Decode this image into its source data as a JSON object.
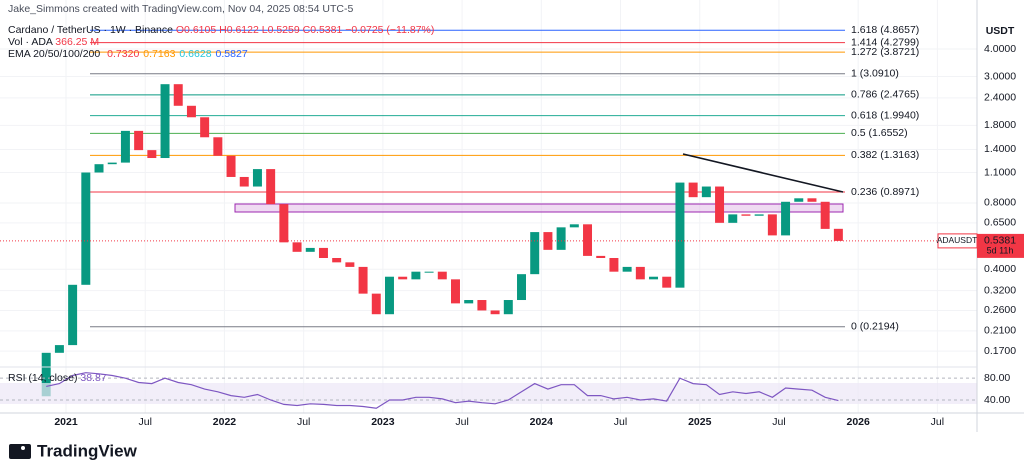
{
  "header": {
    "credit": "Jake_Simmons created with TradingView.com, Nov 04, 2025 08:54 UTC-5",
    "symbol": "Cardano / TetherUS · 1W · Binance",
    "ohlc": [
      "O0.6105",
      "H0.6122",
      "L0.5259",
      "C0.5381",
      "−0.0725 (−11.87%)"
    ],
    "volume_label": "Vol · ADA",
    "volume_value": "366.25 M",
    "ema_label": "EMA 20/50/100/200",
    "ema_values": [
      {
        "text": "0.7320",
        "color": "#f23645"
      },
      {
        "text": "0.7163",
        "color": "#ff9800"
      },
      {
        "text": "0.6628",
        "color": "#26c6da"
      },
      {
        "text": "0.5827",
        "color": "#2962ff"
      }
    ]
  },
  "chart_data": {
    "type": "candlestick",
    "axis_unit": "USDT",
    "log_scale": true,
    "grid": true,
    "up_color": "#089981",
    "down_color": "#f23645",
    "x": [
      "2020-11",
      "2020-12",
      "2021-01",
      "2021-02",
      "2021-03",
      "2021-04",
      "2021-05",
      "2021-06",
      "2021-07",
      "2021-08",
      "2021-09",
      "2021-10",
      "2021-11",
      "2021-12",
      "2022-01",
      "2022-02",
      "2022-03",
      "2022-04",
      "2022-05",
      "2022-06",
      "2022-07",
      "2022-08",
      "2022-09",
      "2022-10",
      "2022-11",
      "2022-12",
      "2023-01",
      "2023-02",
      "2023-03",
      "2023-04",
      "2023-05",
      "2023-06",
      "2023-07",
      "2023-08",
      "2023-09",
      "2023-10",
      "2023-11",
      "2023-12",
      "2024-01",
      "2024-02",
      "2024-03",
      "2024-04",
      "2024-05",
      "2024-06",
      "2024-07",
      "2024-08",
      "2024-09",
      "2024-10",
      "2024-11",
      "2024-12",
      "2025-01",
      "2025-02",
      "2025-03",
      "2025-04",
      "2025-05",
      "2025-06",
      "2025-07",
      "2025-08",
      "2025-09",
      "2025-10",
      "2025-11"
    ],
    "open": [
      0.106,
      0.167,
      0.181,
      0.34,
      1.1,
      1.2,
      1.22,
      1.7,
      1.39,
      1.28,
      2.77,
      2.21,
      1.96,
      1.59,
      1.31,
      1.05,
      0.95,
      1.14,
      0.79,
      0.53,
      0.48,
      0.5,
      0.45,
      0.43,
      0.41,
      0.31,
      0.25,
      0.37,
      0.36,
      0.39,
      0.39,
      0.36,
      0.28,
      0.29,
      0.26,
      0.25,
      0.29,
      0.38,
      0.59,
      0.49,
      0.62,
      0.64,
      0.46,
      0.45,
      0.39,
      0.41,
      0.36,
      0.37,
      0.33,
      0.99,
      0.85,
      0.95,
      0.65,
      0.71,
      0.7,
      0.71,
      0.57,
      0.81,
      0.84,
      0.81,
      0.6105
    ],
    "close": [
      0.167,
      0.181,
      0.34,
      1.1,
      1.2,
      1.22,
      1.7,
      1.39,
      1.28,
      2.77,
      2.21,
      1.96,
      1.59,
      1.31,
      1.05,
      0.95,
      1.14,
      0.79,
      0.53,
      0.48,
      0.5,
      0.45,
      0.43,
      0.41,
      0.31,
      0.25,
      0.37,
      0.36,
      0.39,
      0.39,
      0.36,
      0.28,
      0.29,
      0.26,
      0.25,
      0.29,
      0.38,
      0.59,
      0.49,
      0.62,
      0.64,
      0.46,
      0.45,
      0.39,
      0.41,
      0.36,
      0.37,
      0.33,
      0.99,
      0.85,
      0.95,
      0.65,
      0.71,
      0.7,
      0.71,
      0.57,
      0.81,
      0.84,
      0.81,
      0.61,
      0.5381
    ],
    "xlim": [
      "2020-08",
      "2026-10"
    ],
    "xticks": [
      {
        "value": "2021-01",
        "label": "2021"
      },
      {
        "value": "2021-07",
        "label": "Jul"
      },
      {
        "value": "2022-01",
        "label": "2022"
      },
      {
        "value": "2022-07",
        "label": "Jul"
      },
      {
        "value": "2023-01",
        "label": "2023"
      },
      {
        "value": "2023-07",
        "label": "Jul"
      },
      {
        "value": "2024-01",
        "label": "2024"
      },
      {
        "value": "2024-07",
        "label": "Jul"
      },
      {
        "value": "2025-01",
        "label": "2025"
      },
      {
        "value": "2025-07",
        "label": "Jul"
      },
      {
        "value": "2026-01",
        "label": "2026"
      },
      {
        "value": "2026-07",
        "label": "Jul"
      }
    ],
    "ylim": [
      0.147,
      5.71
    ],
    "yticks": [
      {
        "value": 4,
        "label": "4.0000"
      },
      {
        "value": 3,
        "label": "3.0000"
      },
      {
        "value": 2.4,
        "label": "2.4000"
      },
      {
        "value": 1.8,
        "label": "1.8000"
      },
      {
        "value": 1.4,
        "label": "1.4000"
      },
      {
        "value": 1.1,
        "label": "1.1000"
      },
      {
        "value": 0.8,
        "label": "0.8000"
      },
      {
        "value": 0.65,
        "label": "0.6500"
      },
      {
        "value": 0.4,
        "label": "0.4000"
      },
      {
        "value": 0.32,
        "label": "0.3200"
      },
      {
        "value": 0.26,
        "label": "0.2600"
      },
      {
        "value": 0.21,
        "label": "0.2100"
      },
      {
        "value": 0.17,
        "label": "0.1700"
      }
    ],
    "fib_levels": [
      {
        "label": "1.618 (4.8657)",
        "value": 4.8657,
        "color": "#2962ff"
      },
      {
        "label": "1.414 (4.2799)",
        "value": 4.2799,
        "color": "#f23645"
      },
      {
        "label": "1.272 (3.8721)",
        "value": 3.8721,
        "color": "#ff9800"
      },
      {
        "label": "1 (3.0910)",
        "value": 3.091,
        "color": "#787b86"
      },
      {
        "label": "0.786 (2.4765)",
        "value": 2.4765,
        "color": "#089981"
      },
      {
        "label": "0.618 (1.9940)",
        "value": 1.994,
        "color": "#22ab94"
      },
      {
        "label": "0.5 (1.6552)",
        "value": 1.6552,
        "color": "#4caf50"
      },
      {
        "label": "0.382 (1.3163)",
        "value": 1.3163,
        "color": "#ff9800"
      },
      {
        "label": "0.236 (0.8971)",
        "value": 0.8971,
        "color": "#f23645"
      },
      {
        "label": "0 (0.2194)",
        "value": 0.2194,
        "color": "#787b86"
      }
    ],
    "price_tag": {
      "symbol": "ADAUSDT",
      "value": 0.5381,
      "countdown": "5d 11h"
    },
    "rsi": {
      "label": "RSI (14, close)",
      "value": 38.87,
      "color": "#7e57c2",
      "ylim": [
        18,
        95
      ],
      "yticks": [
        {
          "value": 80,
          "label": "80.00"
        },
        {
          "value": 40,
          "label": "40.00"
        }
      ],
      "values": [
        65,
        70,
        85,
        90,
        88,
        85,
        80,
        72,
        70,
        80,
        72,
        68,
        60,
        55,
        48,
        45,
        50,
        40,
        32,
        30,
        33,
        32,
        30,
        30,
        28,
        25,
        40,
        40,
        45,
        45,
        42,
        35,
        38,
        35,
        33,
        40,
        55,
        70,
        60,
        68,
        68,
        48,
        48,
        42,
        45,
        40,
        42,
        38,
        80,
        70,
        68,
        50,
        55,
        52,
        55,
        45,
        62,
        60,
        58,
        45,
        38.87
      ]
    }
  },
  "footer": {
    "brand": "TradingView"
  }
}
